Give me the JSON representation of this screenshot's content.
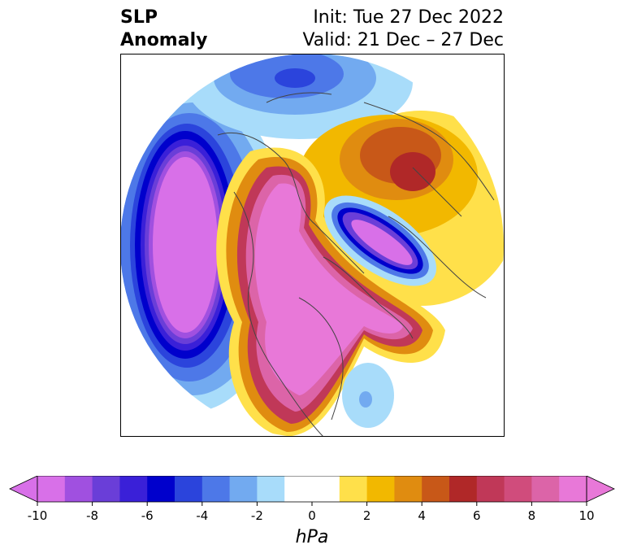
{
  "header": {
    "title_line1": "SLP",
    "title_line2": "Anomaly",
    "init_label": "Init: Tue 27 Dec 2022",
    "valid_label": "Valid: 21 Dec – 27 Dec"
  },
  "colorbar": {
    "unit": "hPa",
    "ticks": [
      "-10",
      "-8",
      "-6",
      "-4",
      "-2",
      "0",
      "2",
      "4",
      "6",
      "8",
      "10"
    ],
    "bins": [
      {
        "from": -10,
        "to": -9,
        "color": "#d870e8"
      },
      {
        "from": -9,
        "to": -8,
        "color": "#a050e0"
      },
      {
        "from": -8,
        "to": -7,
        "color": "#6a3ed8"
      },
      {
        "from": -7,
        "to": -6,
        "color": "#3a20d8"
      },
      {
        "from": -6,
        "to": -5,
        "color": "#0000cc"
      },
      {
        "from": -5,
        "to": -4,
        "color": "#2b44dc"
      },
      {
        "from": -4,
        "to": -3,
        "color": "#4d78e8"
      },
      {
        "from": -3,
        "to": -2,
        "color": "#72aaf0"
      },
      {
        "from": -2,
        "to": -1,
        "color": "#a8dcfa"
      },
      {
        "from": -1,
        "to": 1,
        "color": "#ffffff"
      },
      {
        "from": 1,
        "to": 2,
        "color": "#ffe04a"
      },
      {
        "from": 2,
        "to": 3,
        "color": "#f2b800"
      },
      {
        "from": 3,
        "to": 4,
        "color": "#e08c10"
      },
      {
        "from": 4,
        "to": 5,
        "color": "#c85818"
      },
      {
        "from": 5,
        "to": 6,
        "color": "#b02828"
      },
      {
        "from": 6,
        "to": 7,
        "color": "#c03858"
      },
      {
        "from": 7,
        "to": 8,
        "color": "#d04c7c"
      },
      {
        "from": 8,
        "to": 9,
        "color": "#dc64a8"
      },
      {
        "from": 9,
        "to": 10,
        "color": "#e878d8"
      }
    ],
    "extend_low_color": "#d870e8",
    "extend_high_color": "#e878d8"
  },
  "map": {
    "projection": "north-polar-stereographic",
    "coastline_color": "#444444"
  }
}
